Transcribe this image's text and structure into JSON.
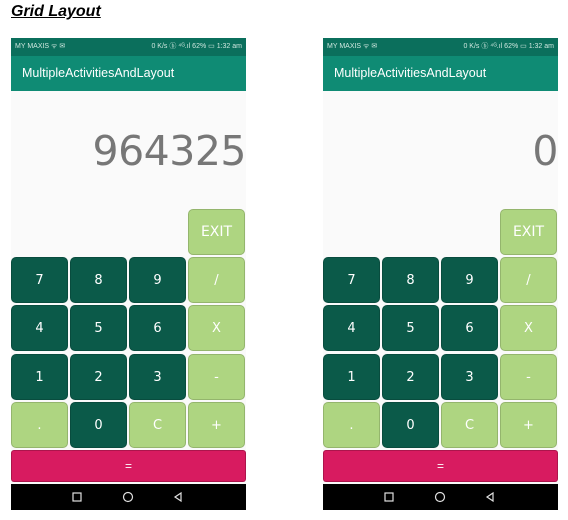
{
  "doc_title": "Grid Layout",
  "colors": {
    "status_bar": "#0b6f5c",
    "app_bar": "#0f8b74",
    "key_dark": "#0b5a49",
    "key_light": "#aed581",
    "equals": "#d81b60"
  },
  "phones": [
    {
      "status": {
        "carrier": "MY MAXIS ᯤ ✉",
        "right": "0 K/s ⓑ ⁴ᴳ.ıl 62% ▭ 1:32 am"
      },
      "app_title": "MultipleActivitiesAndLayout",
      "display": "964325",
      "keys": {
        "exit": "EXIT",
        "k7": "7",
        "k8": "8",
        "k9": "9",
        "div": "/",
        "k4": "4",
        "k5": "5",
        "k6": "6",
        "mul": "X",
        "k1": "1",
        "k2": "2",
        "k3": "3",
        "sub": "-",
        "dot": ".",
        "k0": "0",
        "clear": "C",
        "add": "+",
        "equals": "="
      }
    },
    {
      "status": {
        "carrier": "MY MAXIS ᯤ ✉",
        "right": "0 K/s ⓑ ⁴ᴳ.ıl 62% ▭ 1:32 am"
      },
      "app_title": "MultipleActivitiesAndLayout",
      "display": "0",
      "keys": {
        "exit": "EXIT",
        "k7": "7",
        "k8": "8",
        "k9": "9",
        "div": "/",
        "k4": "4",
        "k5": "5",
        "k6": "6",
        "mul": "X",
        "k1": "1",
        "k2": "2",
        "k3": "3",
        "sub": "-",
        "dot": ".",
        "k0": "0",
        "clear": "C",
        "add": "+",
        "equals": "="
      }
    }
  ],
  "nav_icons": [
    "recent-apps-icon",
    "home-icon",
    "back-icon"
  ]
}
